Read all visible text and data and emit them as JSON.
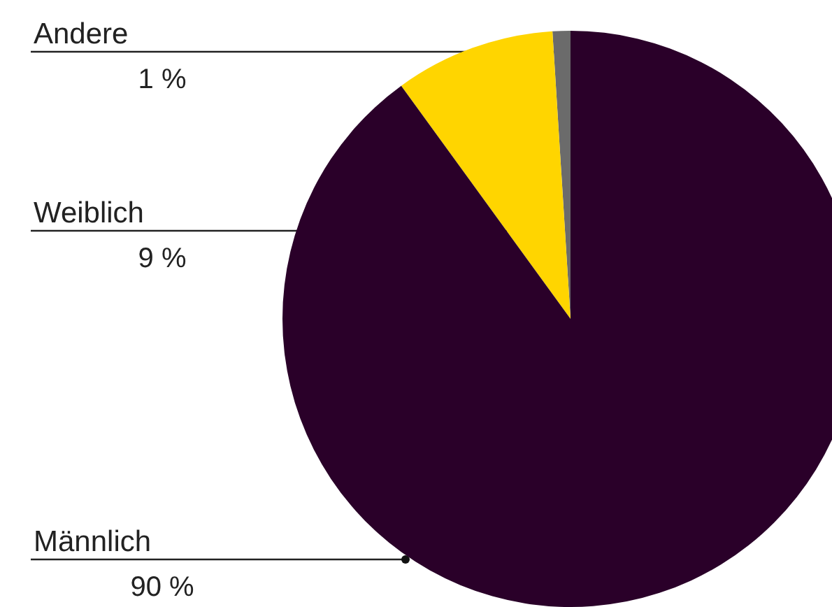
{
  "chart_data": {
    "type": "pie",
    "categories": [
      "Andere",
      "Weiblich",
      "Männlich"
    ],
    "values": [
      1,
      9,
      90
    ],
    "colors": [
      "#6b6b6b",
      "#ffd500",
      "#2a0029"
    ],
    "value_labels": [
      "1 %",
      "9 %",
      "90 %"
    ],
    "legend": false
  }
}
